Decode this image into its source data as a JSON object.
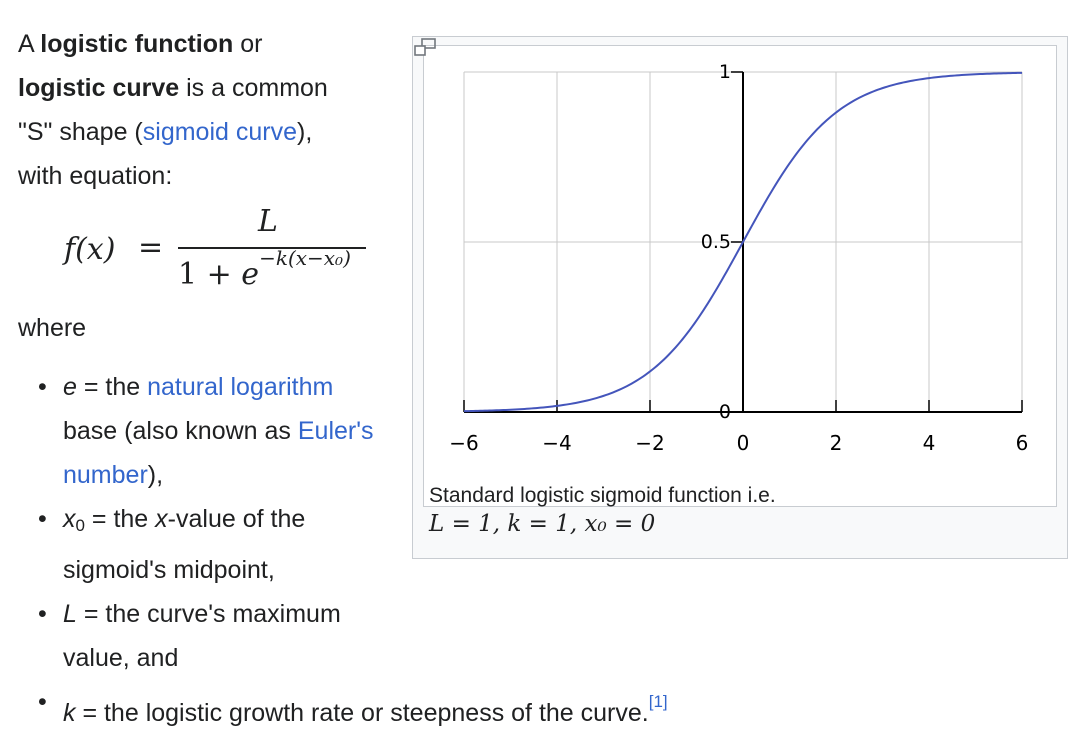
{
  "intro": {
    "a": "A ",
    "term1": "logistic function",
    "or": " or",
    "term2": "logistic curve",
    "rest1": " is a common \"S\" shape (",
    "sigmoid_link": "sigmoid curve",
    "rest2": "), with equation:"
  },
  "formula": {
    "lhs": "f(x)",
    "eq": "=",
    "numerator": "L",
    "den_one": "1 + ",
    "den_e": "e",
    "den_exp": "−k(x−x₀)"
  },
  "where": "where",
  "definitions": [
    {
      "var": "e",
      "text_a": " = the ",
      "link": "natural logarithm",
      "text_b": " base (also known as ",
      "link2": "Euler's number",
      "text_c": "),"
    },
    {
      "var": "x",
      "sub": "0",
      "text_a": " = the ",
      "ivar": "x",
      "text_b": "-value of the sigmoid's midpoint,"
    },
    {
      "var": "L",
      "text_a": " = the curve's maximum value, and"
    },
    {
      "var": "k",
      "text_a": " = the logistic growth rate or steepness of the curve.",
      "ref": "[1]"
    }
  ],
  "figure": {
    "caption": "Standard logistic sigmoid function i.e.",
    "caption_math": "L = 1, k = 1, x₀ = 0",
    "magnify_icon": "magnify-clip-icon"
  },
  "chart_data": {
    "type": "line",
    "title": "",
    "xlabel": "",
    "ylabel": "",
    "xlim": [
      -6,
      6
    ],
    "ylim": [
      0,
      1
    ],
    "x_ticks": [
      "−6",
      "−4",
      "−2",
      "0",
      "2",
      "4",
      "6"
    ],
    "y_ticks": [
      "0",
      "0.5",
      "1"
    ],
    "grid": true,
    "line_color": "#4455bb",
    "series": [
      {
        "x": [
          -6,
          -5,
          -4,
          -3,
          -2,
          -1,
          0,
          1,
          2,
          3,
          4,
          5,
          6
        ],
        "values": [
          0.0025,
          0.0067,
          0.018,
          0.047,
          0.119,
          0.269,
          0.5,
          0.731,
          0.881,
          0.953,
          0.982,
          0.9933,
          0.9975
        ]
      }
    ]
  }
}
